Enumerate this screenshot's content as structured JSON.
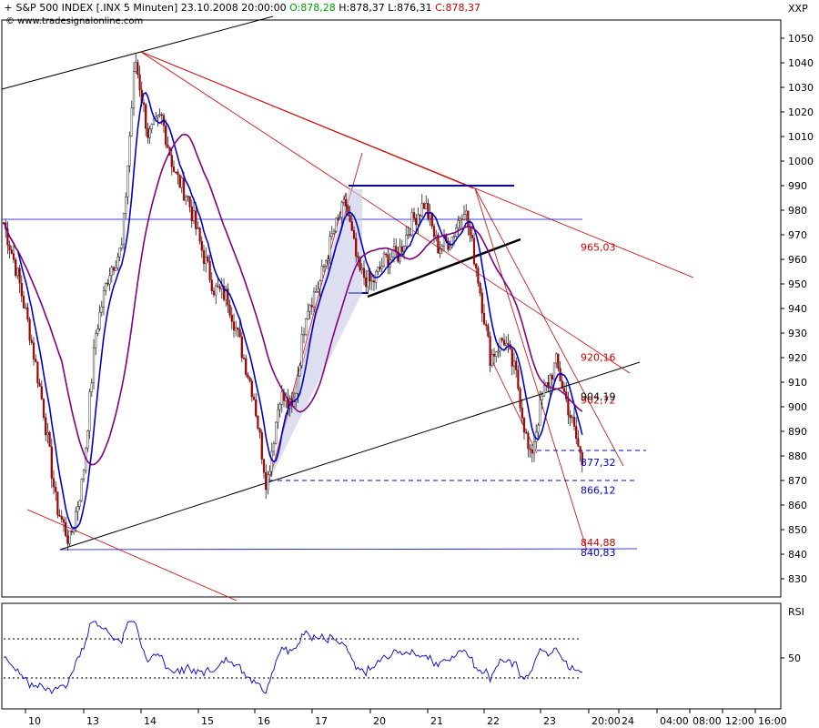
{
  "header": {
    "title": "S&P 500 INDEX [.INX  5 Minuten] 23.10.2008 20:00:00",
    "open": "O:878,28",
    "high": "H:878,37",
    "low": "L:876,31",
    "close": "C:878,37",
    "source": "© www.tradesignalonline.com",
    "source_icon": "copyright",
    "marker_icon": "plus-icon",
    "open_color": "#00a000",
    "close_color": "#cc0000"
  },
  "chart_data": [
    {
      "type": "candlestick",
      "title": "S&P 500 INDEX [.INX  5 Minuten]",
      "ylabel": "XXP",
      "ylim": [
        822,
        1058
      ],
      "yticks": [
        830,
        840,
        850,
        860,
        870,
        880,
        890,
        900,
        910,
        920,
        930,
        940,
        950,
        960,
        970,
        980,
        990,
        1000,
        1010,
        1020,
        1030,
        1040,
        1050
      ],
      "x_tick_labels": [
        "10",
        "13",
        "14",
        "15",
        "16",
        "17",
        "20",
        "21",
        "22",
        "23",
        "20:00",
        "24",
        "04:00",
        "08:00",
        "12:00",
        "16:00"
      ],
      "approx_close_path": [
        {
          "x": "10",
          "y": 975
        },
        {
          "x": "10",
          "y": 955
        },
        {
          "x": "10",
          "y": 930
        },
        {
          "x": "10",
          "y": 900
        },
        {
          "x": "13",
          "y": 860
        },
        {
          "x": "13",
          "y": 845
        },
        {
          "x": "13",
          "y": 870
        },
        {
          "x": "13",
          "y": 930
        },
        {
          "x": "13",
          "y": 955
        },
        {
          "x": "13",
          "y": 965
        },
        {
          "x": "14",
          "y": 1042
        },
        {
          "x": "14",
          "y": 1010
        },
        {
          "x": "14",
          "y": 1018
        },
        {
          "x": "14",
          "y": 995
        },
        {
          "x": "15",
          "y": 985
        },
        {
          "x": "15",
          "y": 965
        },
        {
          "x": "15",
          "y": 948
        },
        {
          "x": "15",
          "y": 945
        },
        {
          "x": "16",
          "y": 925
        },
        {
          "x": "16",
          "y": 905
        },
        {
          "x": "16",
          "y": 868
        },
        {
          "x": "16",
          "y": 905
        },
        {
          "x": "16",
          "y": 898
        },
        {
          "x": "17",
          "y": 940
        },
        {
          "x": "17",
          "y": 950
        },
        {
          "x": "17",
          "y": 970
        },
        {
          "x": "17",
          "y": 983
        },
        {
          "x": "20",
          "y": 955
        },
        {
          "x": "20",
          "y": 950
        },
        {
          "x": "20",
          "y": 960
        },
        {
          "x": "20",
          "y": 962
        },
        {
          "x": "21",
          "y": 975
        },
        {
          "x": "21",
          "y": 983
        },
        {
          "x": "21",
          "y": 965
        },
        {
          "x": "21",
          "y": 968
        },
        {
          "x": "21",
          "y": 982
        },
        {
          "x": "22",
          "y": 955
        },
        {
          "x": "22",
          "y": 920
        },
        {
          "x": "22",
          "y": 928
        },
        {
          "x": "22",
          "y": 912
        },
        {
          "x": "23",
          "y": 878
        },
        {
          "x": "23",
          "y": 905
        },
        {
          "x": "23",
          "y": 918
        },
        {
          "x": "23",
          "y": 898
        },
        {
          "x": "23",
          "y": 877
        }
      ],
      "levels": [
        {
          "label": "965,03",
          "value": 965.03,
          "color": "#cc0000"
        },
        {
          "label": "920,16",
          "value": 920.16,
          "color": "#cc0000"
        },
        {
          "label": "902,72",
          "value": 902.72,
          "color": "#cc0000"
        },
        {
          "label": "904,19",
          "value": 904.19,
          "color": "#000000"
        },
        {
          "label": "877,32",
          "value": 877.32,
          "color": "#0000cc"
        },
        {
          "label": "866,12",
          "value": 866.12,
          "color": "#0000cc"
        },
        {
          "label": "844,88",
          "value": 844.88,
          "color": "#cc0000"
        },
        {
          "label": "840,83",
          "value": 840.83,
          "color": "#0000cc"
        }
      ],
      "indicators": [
        "fast moving average (blue)",
        "slow moving average (purple)"
      ],
      "grid": false
    },
    {
      "type": "line",
      "title": "RSI",
      "ylabel": "RSI",
      "yticks": [
        50
      ],
      "reference_lines": [
        "upper band (dotted)",
        "lower band (dotted)"
      ]
    }
  ]
}
